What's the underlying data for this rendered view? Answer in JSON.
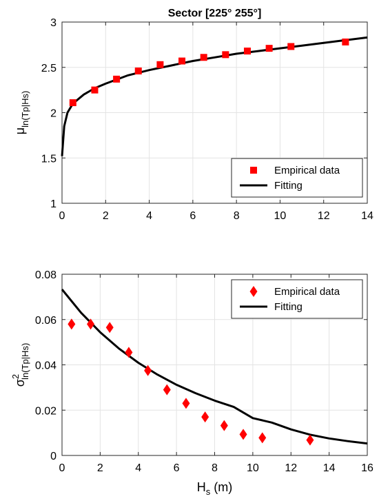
{
  "chart_data": [
    {
      "type": "scatter",
      "title": "Sector [225° 255°]",
      "ylabel_main": "μ",
      "ylabel_sub": "ln(Tp|Hs)",
      "xlabel_main": "",
      "xlabel_sub": "",
      "xlim": [
        0,
        14
      ],
      "ylim": [
        1,
        3
      ],
      "xticks": [
        0,
        2,
        4,
        6,
        8,
        10,
        12,
        14
      ],
      "yticks": [
        1,
        1.5,
        2,
        2.5,
        3
      ],
      "ytick_labels": [
        "1",
        "1.5",
        "2",
        "2.5",
        "3"
      ],
      "grid": true,
      "legend_position": "bottom-right",
      "series": [
        {
          "name": "Empirical data",
          "kind": "markers",
          "marker": "square",
          "color": "#ff0000",
          "x": [
            0.5,
            1.5,
            2.5,
            3.5,
            4.5,
            5.5,
            6.5,
            7.5,
            8.5,
            9.5,
            10.5,
            13
          ],
          "y": [
            2.11,
            2.25,
            2.37,
            2.46,
            2.53,
            2.57,
            2.61,
            2.64,
            2.68,
            2.71,
            2.73,
            2.78
          ]
        },
        {
          "name": "Fitting",
          "kind": "line",
          "color": "#000000",
          "x": [
            0,
            0.1,
            0.25,
            0.5,
            1,
            1.5,
            2,
            3,
            4,
            5,
            6,
            7,
            8,
            9,
            10,
            11,
            12,
            13,
            14
          ],
          "y": [
            1.52,
            1.85,
            2.0,
            2.1,
            2.2,
            2.27,
            2.32,
            2.41,
            2.47,
            2.52,
            2.57,
            2.61,
            2.65,
            2.68,
            2.71,
            2.74,
            2.77,
            2.8,
            2.83
          ]
        }
      ]
    },
    {
      "type": "scatter",
      "title": "",
      "ylabel_main": "σ",
      "ylabel_sup": "2",
      "ylabel_sub": "ln(Tp|Hs)",
      "xlabel_main": "H",
      "xlabel_sub": "s",
      "xlabel_unit": " (m)",
      "xlim": [
        0,
        16
      ],
      "ylim": [
        0,
        0.08
      ],
      "xticks": [
        0,
        2,
        4,
        6,
        8,
        10,
        12,
        14,
        16
      ],
      "yticks": [
        0,
        0.02,
        0.04,
        0.06,
        0.08
      ],
      "ytick_labels": [
        "0",
        "0.02",
        "0.04",
        "0.06",
        "0.08"
      ],
      "grid": true,
      "legend_position": "top-right",
      "series": [
        {
          "name": "Empirical data",
          "kind": "markers",
          "marker": "diamond",
          "color": "#ff0000",
          "x": [
            0.5,
            1.5,
            2.5,
            3.5,
            4.5,
            5.5,
            6.5,
            7.5,
            8.5,
            9.5,
            10.5,
            13
          ],
          "y": [
            0.058,
            0.058,
            0.0565,
            0.0455,
            0.0375,
            0.029,
            0.023,
            0.017,
            0.0132,
            0.0093,
            0.0078,
            0.0068
          ]
        },
        {
          "name": "Fitting",
          "kind": "line",
          "color": "#000000",
          "x": [
            0,
            1,
            2,
            3,
            4,
            5,
            6,
            7,
            8,
            9,
            10,
            11,
            12,
            13,
            14,
            15,
            16
          ],
          "y": [
            0.0733,
            0.063,
            0.0544,
            0.0471,
            0.0409,
            0.0357,
            0.0312,
            0.0275,
            0.0242,
            0.0214,
            0.0165,
            0.0145,
            0.0115,
            0.0092,
            0.0075,
            0.0063,
            0.0053
          ]
        }
      ]
    }
  ]
}
